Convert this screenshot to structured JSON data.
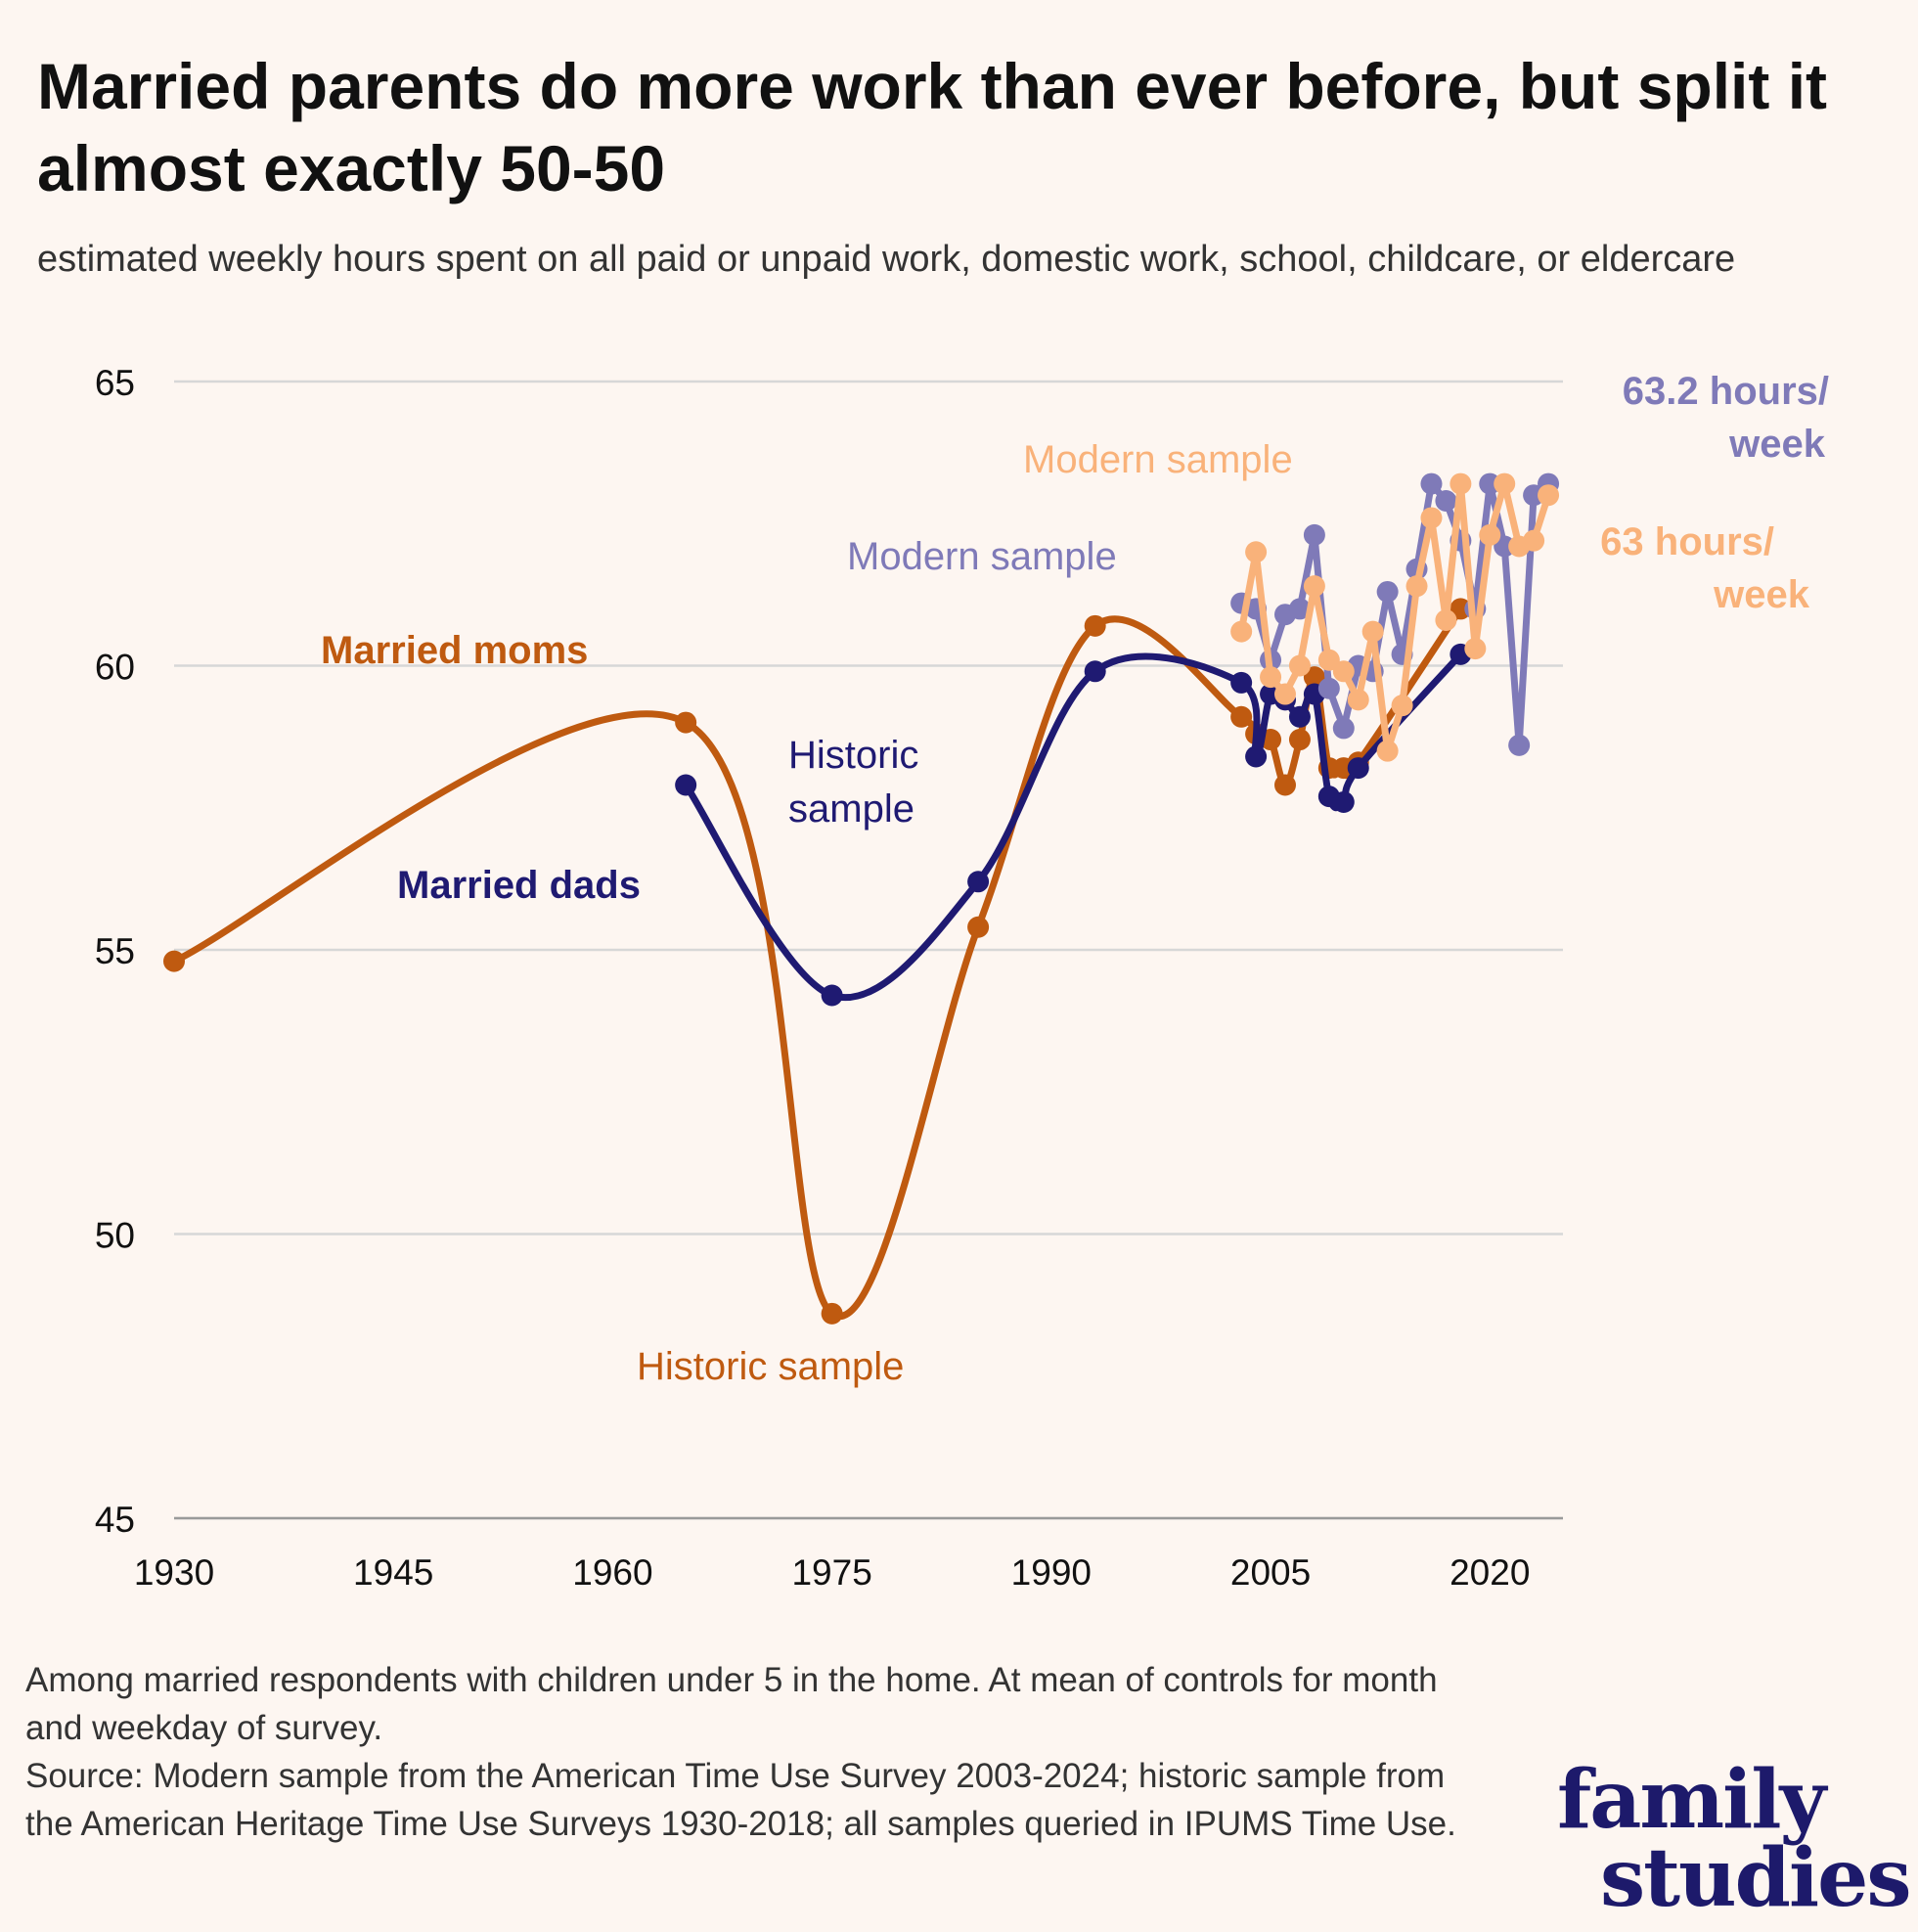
{
  "header": {
    "title": "Married parents do more work than ever before, but split it almost exactly 50-50",
    "subtitle": "estimated weekly hours spent on all paid or unpaid work, domestic work, school, childcare, or eldercare"
  },
  "chart_data": {
    "type": "line",
    "title": "Married parents do more work than ever before, but split it almost exactly 50-50",
    "subtitle": "estimated weekly hours spent on all paid or unpaid work, domestic work, school, childcare, or eldercare",
    "xlabel": "",
    "ylabel": "",
    "xlim": [
      1930,
      2025
    ],
    "ylim": [
      45,
      65
    ],
    "x_ticks": [
      1930,
      1945,
      1960,
      1975,
      1990,
      2005,
      2020
    ],
    "y_ticks": [
      45,
      50,
      55,
      60,
      65
    ],
    "grid": "horizontal",
    "legend": "none",
    "series": [
      {
        "name": "Married moms",
        "sample": "Historic sample",
        "color": "#bf5a10",
        "smooth": true,
        "points": [
          [
            1930,
            54.8
          ],
          [
            1965,
            59.0
          ],
          [
            1975,
            48.6
          ],
          [
            1985,
            55.4
          ],
          [
            1993,
            60.7
          ],
          [
            2003,
            59.1
          ],
          [
            2004,
            58.8
          ],
          [
            2005,
            58.7
          ],
          [
            2006,
            57.9
          ],
          [
            2007,
            58.7
          ],
          [
            2008,
            59.8
          ],
          [
            2009,
            58.2
          ],
          [
            2010,
            58.2
          ],
          [
            2011,
            58.3
          ],
          [
            2018,
            61.0
          ]
        ]
      },
      {
        "name": "Married dads",
        "sample": "Historic sample",
        "color": "#1f1a72",
        "smooth": true,
        "points": [
          [
            1965,
            57.9
          ],
          [
            1975,
            54.2
          ],
          [
            1985,
            56.2
          ],
          [
            1993,
            59.9
          ],
          [
            2003,
            59.7
          ],
          [
            2004,
            58.4
          ],
          [
            2005,
            59.5
          ],
          [
            2006,
            59.4
          ],
          [
            2007,
            59.1
          ],
          [
            2008,
            59.5
          ],
          [
            2009,
            57.7
          ],
          [
            2010,
            57.6
          ],
          [
            2011,
            58.2
          ],
          [
            2018,
            60.2
          ]
        ]
      },
      {
        "name": "Married dads",
        "sample": "Modern sample",
        "color": "#7f7ab8",
        "smooth": false,
        "points": [
          [
            2003,
            61.1
          ],
          [
            2004,
            61.0
          ],
          [
            2005,
            60.1
          ],
          [
            2006,
            60.9
          ],
          [
            2007,
            61.0
          ],
          [
            2008,
            62.3
          ],
          [
            2009,
            59.6
          ],
          [
            2010,
            58.9
          ],
          [
            2011,
            60.0
          ],
          [
            2012,
            59.9
          ],
          [
            2013,
            61.3
          ],
          [
            2014,
            60.2
          ],
          [
            2015,
            61.7
          ],
          [
            2016,
            63.2
          ],
          [
            2017,
            62.9
          ],
          [
            2018,
            62.2
          ],
          [
            2019,
            61.0
          ],
          [
            2020,
            63.2
          ],
          [
            2021,
            62.1
          ],
          [
            2022,
            58.6
          ],
          [
            2023,
            63.0
          ],
          [
            2024,
            63.2
          ]
        ]
      },
      {
        "name": "Married moms",
        "sample": "Modern sample",
        "color": "#f9b27a",
        "smooth": false,
        "points": [
          [
            2003,
            60.6
          ],
          [
            2004,
            62.0
          ],
          [
            2005,
            59.8
          ],
          [
            2006,
            59.5
          ],
          [
            2007,
            60.0
          ],
          [
            2008,
            61.4
          ],
          [
            2009,
            60.1
          ],
          [
            2010,
            59.9
          ],
          [
            2011,
            59.4
          ],
          [
            2012,
            60.6
          ],
          [
            2013,
            58.5
          ],
          [
            2014,
            59.3
          ],
          [
            2015,
            61.4
          ],
          [
            2016,
            62.6
          ],
          [
            2017,
            60.8
          ],
          [
            2018,
            63.2
          ],
          [
            2019,
            60.3
          ],
          [
            2020,
            62.3
          ],
          [
            2021,
            63.2
          ],
          [
            2022,
            62.1
          ],
          [
            2023,
            62.2
          ],
          [
            2024,
            63.0
          ]
        ]
      }
    ],
    "annotations": {
      "moms_label": "Married moms",
      "dads_label": "Married dads",
      "historic_dads": "Historic sample",
      "historic_moms": "Historic sample",
      "modern_moms": "Modern sample",
      "modern_dads": "Modern sample",
      "end_dads": "63.2 hours/ week",
      "end_moms": "63 hours/ week"
    }
  },
  "footer": {
    "note": "Among married respondents with children under 5 in the home. At mean of controls for month and weekday of survey.",
    "source": "Source: Modern sample from the American Time Use Survey 2003-2024; historic sample from the American Heritage Time Use Surveys 1930-2018; all samples queried in IPUMS Time Use."
  },
  "logo": {
    "line1": "family",
    "line2": "studies"
  }
}
